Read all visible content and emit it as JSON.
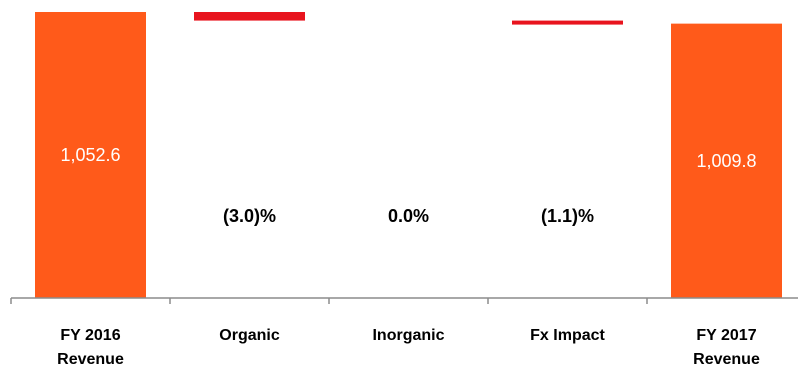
{
  "chart_data": {
    "type": "bar",
    "variant": "waterfall",
    "categories": [
      [
        "FY 2016",
        "Revenue"
      ],
      [
        "Organic"
      ],
      [
        "Inorganic"
      ],
      [
        "Fx Impact"
      ],
      [
        "FY 2017",
        "Revenue"
      ]
    ],
    "bars": [
      {
        "kind": "total",
        "value": 1052.6,
        "label": "1,052.6"
      },
      {
        "kind": "delta",
        "start": 1052.6,
        "end": 1021.0,
        "label": "(3.0)%"
      },
      {
        "kind": "delta",
        "start": 1021.0,
        "end": 1021.0,
        "label": "0.0%"
      },
      {
        "kind": "delta",
        "start": 1021.0,
        "end": 1009.8,
        "label": "(1.1)%"
      },
      {
        "kind": "total",
        "value": 1009.8,
        "label": "1,009.8"
      }
    ],
    "ylim": [
      0,
      1052.6
    ],
    "grid": false,
    "legend": "none",
    "colors": {
      "total": "#FF5A1A",
      "delta": "#E8141E",
      "axis": "#8C8C8C"
    }
  }
}
